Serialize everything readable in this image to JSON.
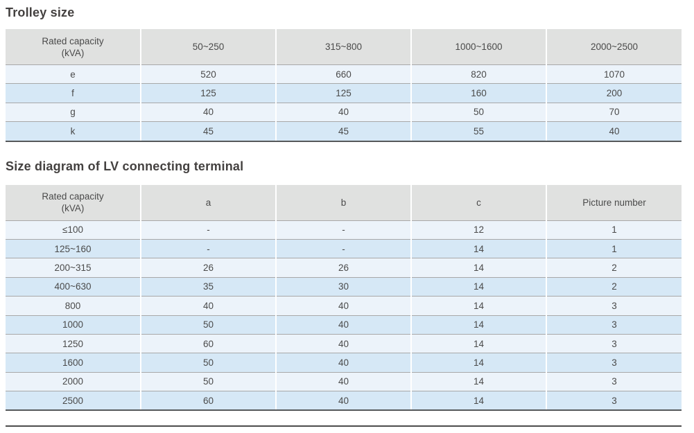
{
  "tables": [
    {
      "title": "Trolley size",
      "columns": [
        "Rated capacity\n(kVA)",
        "50~250",
        "315~800",
        "1000~1600",
        "2000~2500"
      ],
      "rows": [
        [
          "e",
          "520",
          "660",
          "820",
          "1070"
        ],
        [
          "f",
          "125",
          "125",
          "160",
          "200"
        ],
        [
          "g",
          "40",
          "40",
          "50",
          "70"
        ],
        [
          "k",
          "45",
          "45",
          "55",
          "40"
        ]
      ]
    },
    {
      "title": "Size diagram of LV connecting terminal",
      "columns": [
        "Rated capacity\n(kVA)",
        "a",
        "b",
        "c",
        "Picture number"
      ],
      "rows": [
        [
          "≤100",
          "-",
          "-",
          "12",
          "1"
        ],
        [
          "125~160",
          "-",
          "-",
          "14",
          "1"
        ],
        [
          "200~315",
          "26",
          "26",
          "14",
          "2"
        ],
        [
          "400~630",
          "35",
          "30",
          "14",
          "2"
        ],
        [
          "800",
          "40",
          "40",
          "14",
          "3"
        ],
        [
          "1000",
          "50",
          "40",
          "14",
          "3"
        ],
        [
          "1250",
          "60",
          "40",
          "14",
          "3"
        ],
        [
          "1600",
          "50",
          "40",
          "14",
          "3"
        ],
        [
          "2000",
          "50",
          "40",
          "14",
          "3"
        ],
        [
          "2500",
          "60",
          "40",
          "14",
          "3"
        ]
      ]
    }
  ],
  "colors": {
    "header_bg": "#e0e1e0",
    "row_light": "#ecf3fa",
    "row_dark": "#d6e8f6",
    "separator": "#a8a8a8",
    "table_bottom_border": "#55585a",
    "text": "#4a4a4a",
    "title": "#444140"
  }
}
